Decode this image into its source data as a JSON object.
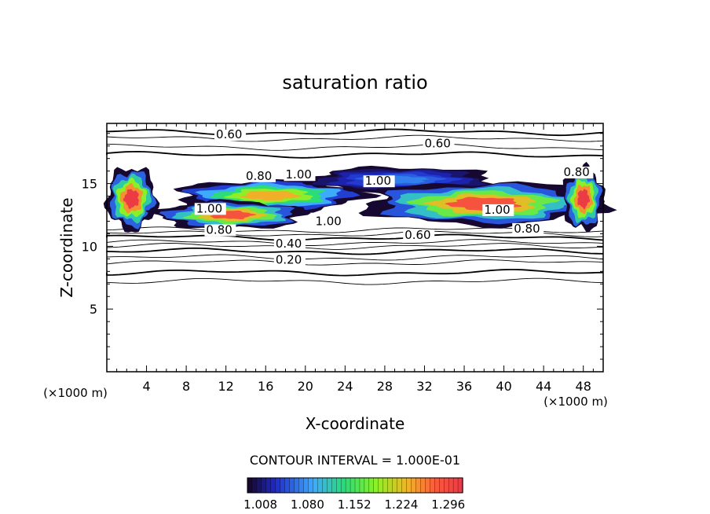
{
  "chart_data": {
    "type": "contour",
    "title": "saturation ratio",
    "xlabel": "X-coordinate",
    "ylabel": "Z-coordinate",
    "x_unit": "(×1000 m)",
    "z_unit": "(×1000 m)",
    "xlim": [
      0,
      50
    ],
    "ylim": [
      0,
      19.8
    ],
    "x_ticks": [
      4,
      8,
      12,
      16,
      20,
      24,
      28,
      32,
      36,
      40,
      44,
      48
    ],
    "y_ticks": [
      5,
      10,
      15
    ],
    "contour_interval_text": "CONTOUR INTERVAL = 1.000E-01",
    "contour_labels": [
      "0.20",
      "0.40",
      "0.60",
      "0.80",
      "1.00"
    ],
    "colorbar": {
      "range": [
        1.0,
        1.33
      ],
      "tick_labels": [
        "1.008",
        "1.080",
        "1.152",
        "1.224",
        "1.296"
      ]
    },
    "contour_lines_z": [
      7.2,
      7.9,
      8.7,
      9.1,
      9.6,
      10.0,
      10.3,
      10.7,
      11.0,
      11.3,
      17.3,
      17.9,
      18.6,
      19.1
    ],
    "supersaturated_regions": [
      {
        "x": [
          0,
          5
        ],
        "z": [
          11.3,
          16.3
        ],
        "peak": 1.33
      },
      {
        "x": [
          7,
          26
        ],
        "z": [
          12.8,
          15.3
        ],
        "peak": 1.25
      },
      {
        "x": [
          5,
          20
        ],
        "z": [
          11.4,
          13.6
        ],
        "peak": 1.3
      },
      {
        "x": [
          20,
          39
        ],
        "z": [
          14.3,
          16.3
        ],
        "peak": 1.08
      },
      {
        "x": [
          26,
          50
        ],
        "z": [
          11.7,
          15.1
        ],
        "peak": 1.3
      },
      {
        "x": [
          46,
          50
        ],
        "z": [
          11.3,
          16.3
        ],
        "peak": 1.33
      }
    ]
  }
}
